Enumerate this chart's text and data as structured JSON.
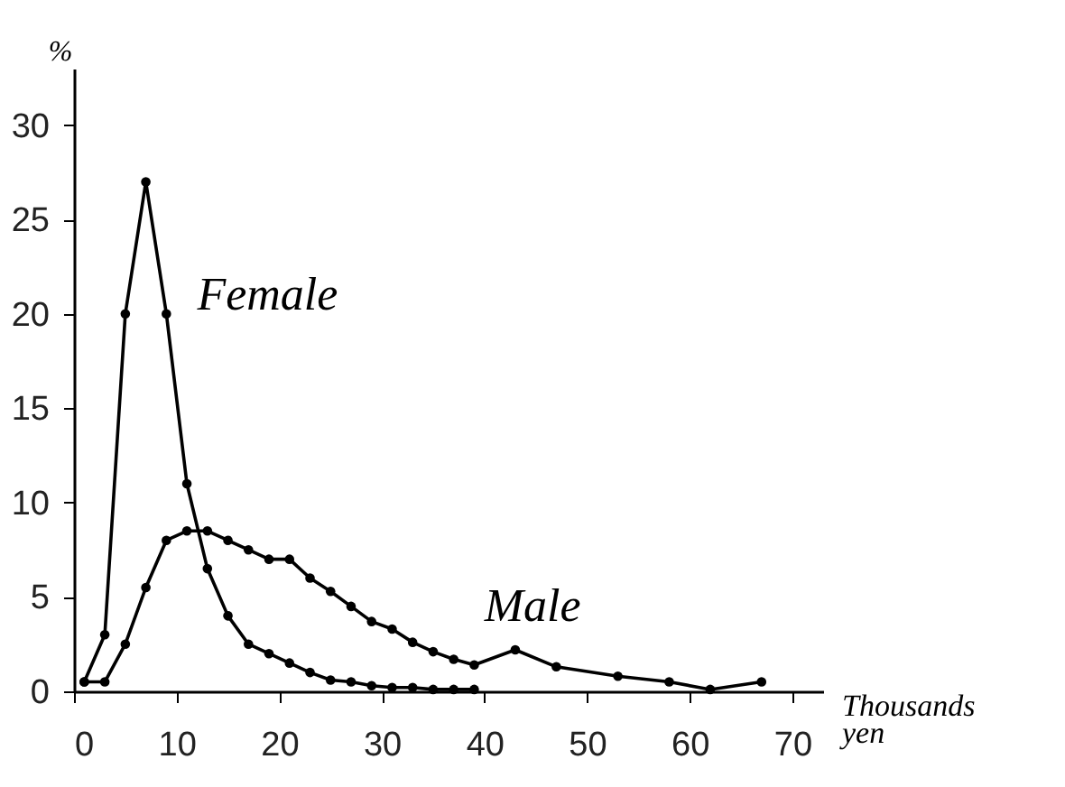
{
  "chart_data": {
    "type": "line",
    "xlabel": "Thousands yen",
    "ylabel": "%",
    "xlim": [
      0,
      73
    ],
    "ylim": [
      0,
      33
    ],
    "xticks": [
      0,
      10,
      20,
      30,
      40,
      50,
      60,
      70
    ],
    "yticks": [
      0,
      5,
      10,
      15,
      20,
      25,
      30
    ],
    "grid": false,
    "marker": "circle",
    "legend": false,
    "series": [
      {
        "name": "Female",
        "color": "#000000",
        "x": [
          1,
          3,
          5,
          7,
          9,
          11,
          13,
          15,
          17,
          19,
          21,
          23,
          25,
          27,
          29,
          31,
          33,
          35,
          37,
          39
        ],
        "values": [
          0.5,
          3,
          20,
          27,
          20,
          11,
          6.5,
          4,
          2.5,
          2,
          1.5,
          1,
          0.6,
          0.5,
          0.3,
          0.2,
          0.2,
          0.1,
          0.1,
          0.1
        ]
      },
      {
        "name": "Male",
        "color": "#000000",
        "x": [
          1,
          3,
          5,
          7,
          9,
          11,
          13,
          15,
          17,
          19,
          21,
          23,
          25,
          27,
          29,
          31,
          33,
          35,
          37,
          39,
          43,
          47,
          53,
          58,
          62,
          67
        ],
        "values": [
          0.5,
          0.5,
          2.5,
          5.5,
          8,
          8.5,
          8.5,
          8,
          7.5,
          7,
          7,
          6,
          5.3,
          4.5,
          3.7,
          3.3,
          2.6,
          2.1,
          1.7,
          1.4,
          2.2,
          1.3,
          0.8,
          0.5,
          0.1,
          0.5
        ]
      }
    ]
  }
}
